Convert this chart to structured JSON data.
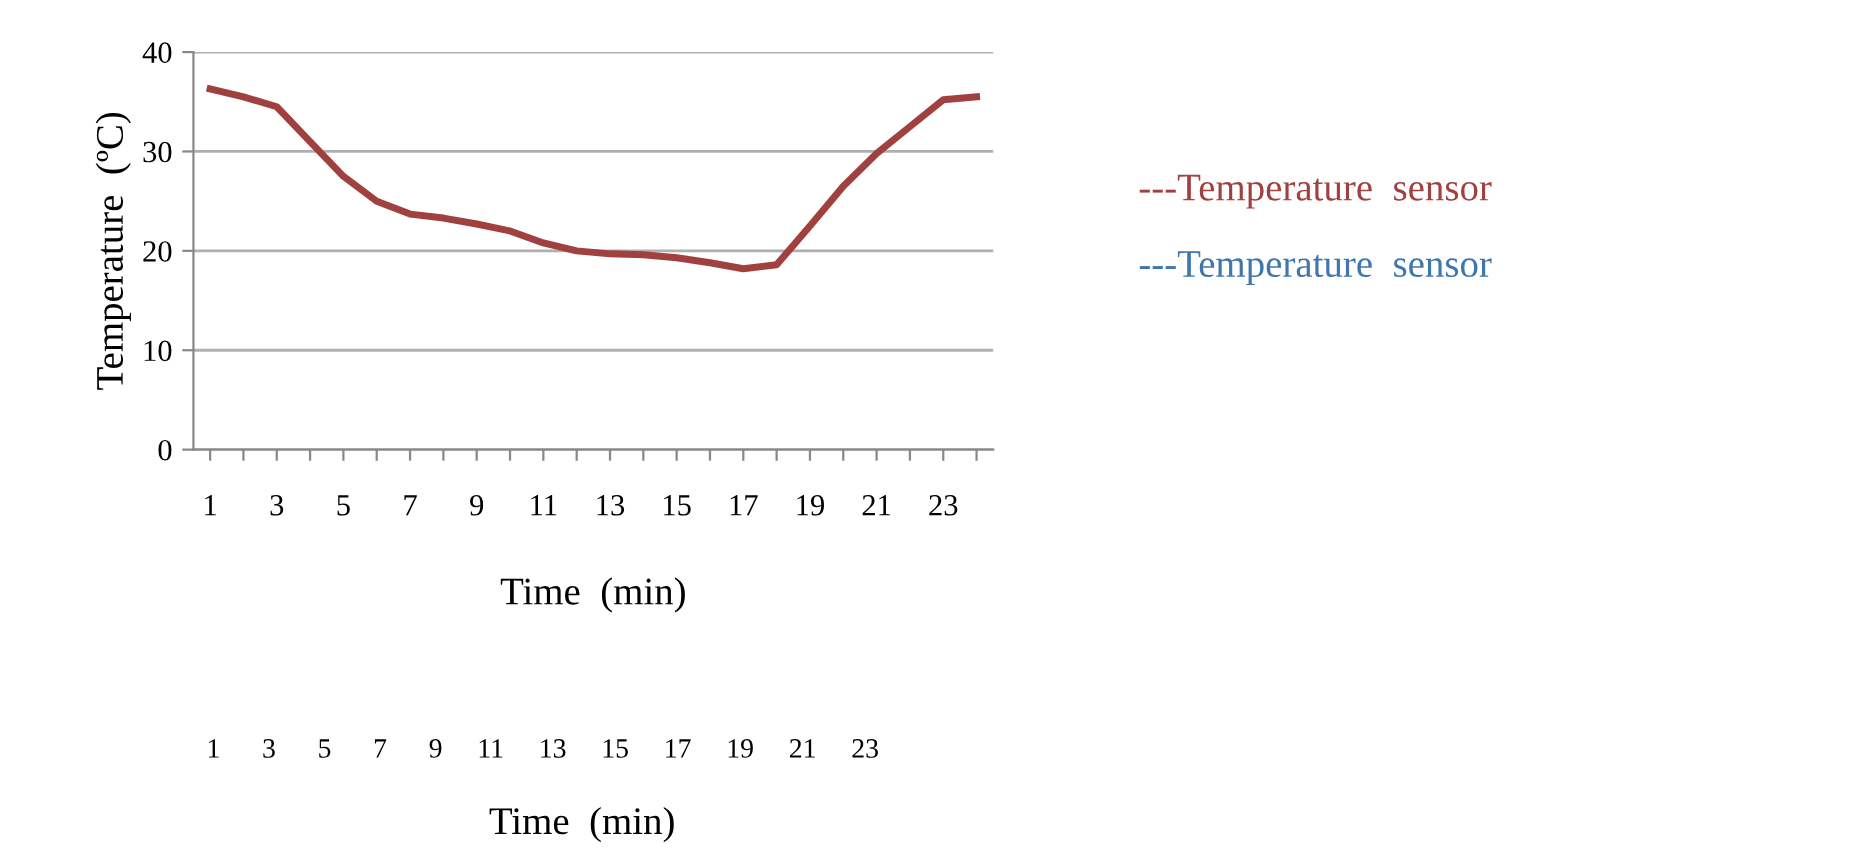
{
  "chart_data": {
    "type": "line",
    "ylabel": "Temperature  (ºC)",
    "xlabel": "Time  (min)",
    "x": [
      1,
      2,
      3,
      4,
      5,
      6,
      7,
      8,
      9,
      10,
      11,
      12,
      13,
      14,
      15,
      16,
      17,
      18,
      19,
      20,
      21,
      22,
      23,
      24
    ],
    "series": [
      {
        "name": "---Temperature  sensor",
        "color": "#a0403f",
        "values": [
          36.3,
          35.5,
          34.5,
          31,
          27.5,
          25,
          23.7,
          23.3,
          22.7,
          22,
          20.8,
          20,
          19.7,
          19.6,
          19.3,
          18.8,
          18.2,
          18.6,
          22.5,
          26.5,
          29.8,
          32.5,
          35.2,
          35.5
        ]
      },
      {
        "name": "---Temperature  sensor",
        "color": "#3f76ad",
        "values": [
          null,
          null,
          null,
          null,
          null,
          null,
          null,
          null,
          null,
          null,
          null,
          null,
          null,
          null,
          null,
          null,
          null,
          null,
          null,
          null,
          null,
          null,
          null,
          null
        ]
      }
    ],
    "xlim": [
      0.5,
      24.5
    ],
    "xticks": [
      1,
      {
        "value": 2,
        "label": null
      },
      3,
      {
        "value": 4,
        "label": null
      },
      5,
      {
        "value": 6,
        "label": null
      },
      7,
      {
        "value": 8,
        "label": null
      },
      9,
      {
        "value": 10,
        "label": null
      },
      11,
      {
        "value": 12,
        "label": null
      },
      13,
      {
        "value": 14,
        "label": null
      },
      15,
      {
        "value": 16,
        "label": null
      },
      17,
      {
        "value": 18,
        "label": null
      },
      19,
      {
        "value": 20,
        "label": null
      },
      21,
      {
        "value": 22,
        "label": null
      },
      23,
      {
        "value": 24,
        "label": null
      }
    ],
    "ylim": [
      0,
      40
    ],
    "yticks": [
      0,
      10,
      20,
      30,
      40
    ],
    "annotations": [
      "1      3      5      7      9     11     13     15     17     19     21     23",
      "Time  (min)"
    ],
    "grid": "y",
    "legend": "right",
    "marker": "none",
    "line_style": "solid"
  }
}
